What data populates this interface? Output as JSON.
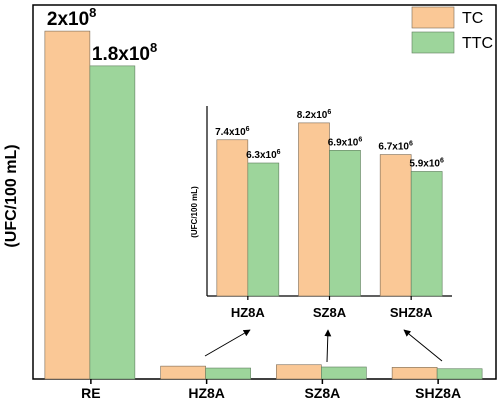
{
  "colors": {
    "TC": "#fac896",
    "TTC": "#9dd59b",
    "TC_stroke": "#7a6a55",
    "TTC_stroke": "#5f7d5e"
  },
  "chart_data": [
    {
      "id": "main",
      "type": "bar",
      "ylabel": "(UFC/100 mL)",
      "categories": [
        "RE",
        "HZ8A",
        "SZ8A",
        "SHZ8A"
      ],
      "series": [
        {
          "name": "TC",
          "values": [
            200000000,
            7400000,
            8200000,
            6700000
          ]
        },
        {
          "name": "TTC",
          "values": [
            180000000,
            6300000,
            6900000,
            5900000
          ]
        }
      ],
      "data_labels": [
        {
          "category": "RE",
          "series": "TC",
          "mantissa": "2x10",
          "exponent": "8"
        },
        {
          "category": "RE",
          "series": "TTC",
          "mantissa": "1.8x10",
          "exponent": "8"
        }
      ],
      "legend": {
        "position": "top-right",
        "entries": [
          "TC",
          "TTC"
        ]
      },
      "ylim": [
        0,
        215000000
      ]
    },
    {
      "id": "inset",
      "type": "bar",
      "ylabel": "(UFC/100 mL)",
      "categories": [
        "HZ8A",
        "SZ8A",
        "SHZ8A"
      ],
      "series": [
        {
          "name": "TC",
          "values": [
            7400000,
            8200000,
            6700000
          ]
        },
        {
          "name": "TTC",
          "values": [
            6300000,
            6900000,
            5900000
          ]
        }
      ],
      "data_labels": [
        {
          "category": "HZ8A",
          "series": "TC",
          "mantissa": "7.4x10",
          "exponent": "6"
        },
        {
          "category": "HZ8A",
          "series": "TTC",
          "mantissa": "6.3x10",
          "exponent": "6"
        },
        {
          "category": "SZ8A",
          "series": "TC",
          "mantissa": "8.2x10",
          "exponent": "6"
        },
        {
          "category": "SZ8A",
          "series": "TTC",
          "mantissa": "6.9x10",
          "exponent": "6"
        },
        {
          "category": "SHZ8A",
          "series": "TC",
          "mantissa": "6.7x10",
          "exponent": "6"
        },
        {
          "category": "SHZ8A",
          "series": "TTC",
          "mantissa": "5.9x10",
          "exponent": "6"
        }
      ],
      "ylim": [
        0,
        9000000
      ]
    }
  ]
}
